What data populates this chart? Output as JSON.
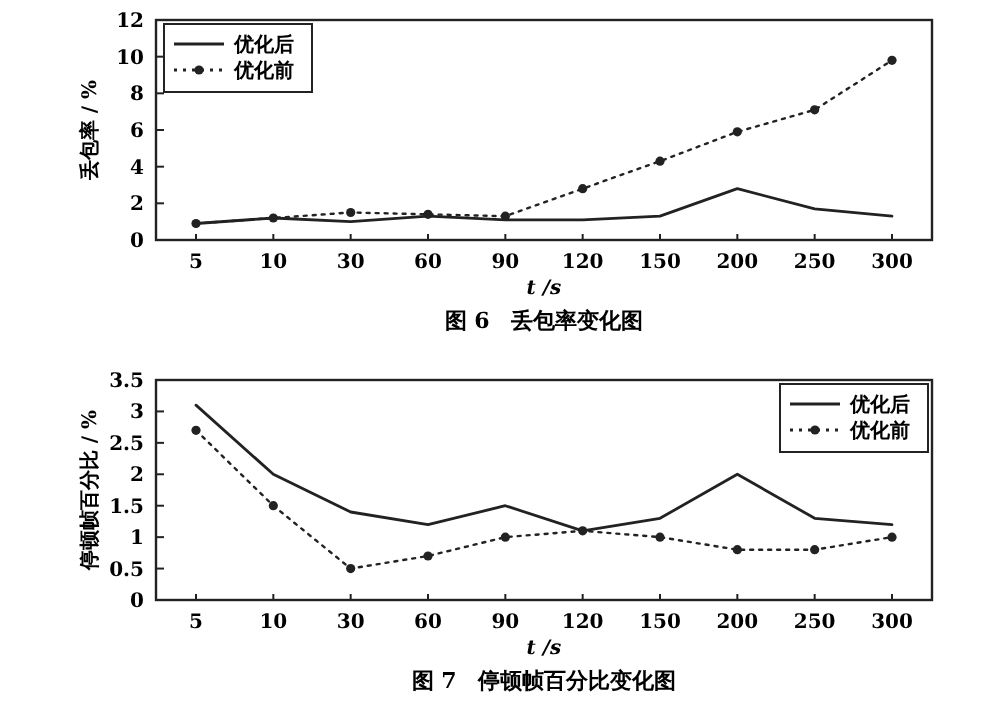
{
  "chart_data": [
    {
      "type": "line",
      "title": "图 6　丢包率变化图",
      "xlabel": "t /s",
      "ylabel": "丢包率 / %",
      "categories": [
        "5",
        "10",
        "30",
        "60",
        "90",
        "120",
        "150",
        "200",
        "250",
        "300"
      ],
      "series": [
        {
          "name": "优化后",
          "color": "#222222",
          "line_style": "solid",
          "marker": "none",
          "values": [
            0.9,
            1.2,
            1.0,
            1.3,
            1.1,
            1.1,
            1.3,
            2.8,
            1.7,
            1.3
          ]
        },
        {
          "name": "优化前",
          "color": "#222222",
          "line_style": "dotted",
          "marker": "circle",
          "values": [
            0.9,
            1.2,
            1.5,
            1.4,
            1.3,
            2.8,
            4.3,
            5.9,
            7.1,
            9.8
          ]
        }
      ],
      "ylim": [
        0,
        12
      ],
      "yticks": [
        0,
        2,
        4,
        6,
        8,
        10,
        12
      ],
      "grid": false,
      "legend": "top left"
    },
    {
      "type": "line",
      "title": "图 7　停顿帧百分比变化图",
      "xlabel": "t /s",
      "ylabel": "停顿帧百分比 / %",
      "categories": [
        "5",
        "10",
        "30",
        "60",
        "90",
        "120",
        "150",
        "200",
        "250",
        "300"
      ],
      "series": [
        {
          "name": "优化后",
          "color": "#222222",
          "line_style": "solid",
          "marker": "none",
          "values": [
            3.1,
            2.0,
            1.4,
            1.2,
            1.5,
            1.1,
            1.3,
            2.0,
            1.3,
            1.2
          ]
        },
        {
          "name": "优化前",
          "color": "#222222",
          "line_style": "dotted",
          "marker": "circle",
          "values": [
            2.7,
            1.5,
            0.5,
            0.7,
            1.0,
            1.1,
            1.0,
            0.8,
            0.8,
            1.0
          ]
        }
      ],
      "ylim": [
        0,
        3.5
      ],
      "yticks": [
        0,
        0.5,
        1,
        1.5,
        2,
        2.5,
        3,
        3.5
      ],
      "grid": false,
      "legend": "top right"
    }
  ]
}
